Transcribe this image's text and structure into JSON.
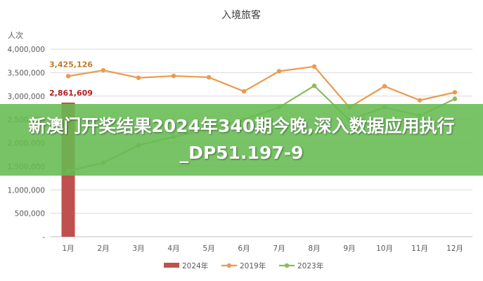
{
  "overlay": {
    "headline": "新澳门开奖结果2024年340期今晚,深入数据应用执行_DP51.197-9"
  },
  "chart_data": {
    "type": "bar+line",
    "title": "入境旅客",
    "ylabel": "人次",
    "ylim": [
      0,
      4000000
    ],
    "yticks": [
      "-",
      "500,000",
      "1,000,000",
      "1,500,000",
      "2,000,000",
      "2,500,000",
      "3,000,000",
      "3,500,000",
      "4,000,000"
    ],
    "categories": [
      "1月",
      "2月",
      "3月",
      "4月",
      "5月",
      "6月",
      "7月",
      "8月",
      "9月",
      "10月",
      "11月",
      "12月"
    ],
    "grid": true,
    "legend_position": "bottom",
    "series": [
      {
        "name": "2024年",
        "kind": "bar",
        "color": "#c0504d",
        "values": [
          2861609,
          null,
          null,
          null,
          null,
          null,
          null,
          null,
          null,
          null,
          null,
          null
        ]
      },
      {
        "name": "2019年",
        "kind": "line",
        "color": "#eb9a4e",
        "values": [
          3425126,
          3550000,
          3390000,
          3430000,
          3400000,
          3100000,
          3530000,
          3630000,
          2760000,
          3210000,
          2910000,
          3080000
        ]
      },
      {
        "name": "2023年",
        "kind": "line",
        "color": "#8fba5b",
        "values": [
          1400000,
          1580000,
          1950000,
          2130000,
          2300000,
          2500000,
          2760000,
          3220000,
          2490000,
          2760000,
          2580000,
          2940000
        ]
      }
    ],
    "annotations": [
      {
        "text": "3,425,126",
        "color": "#c07a2a"
      },
      {
        "text": "2,861,609",
        "color": "#b22222"
      }
    ]
  }
}
